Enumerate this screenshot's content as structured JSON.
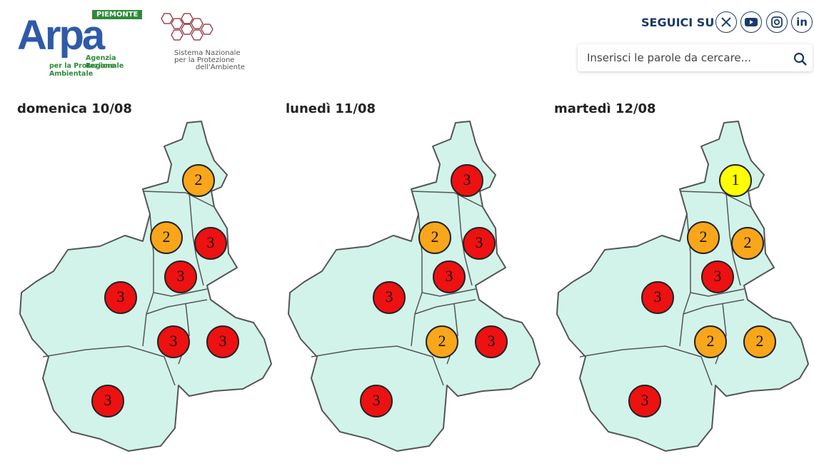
{
  "header": {
    "logo": {
      "badge": "PIEMONTE",
      "name": "Arpa",
      "line1": "Agenzia Regionale",
      "line2": "per la Protezione Ambientale"
    },
    "snpa": {
      "line1": "Sistema Nazionale",
      "line2": "per la Protezione",
      "line3": "dell'Ambiente"
    },
    "follow": "SEGUICI SU",
    "linkedin": "in",
    "search_placeholder": "Inserisci le parole da cercare..."
  },
  "level_colors": [
    "#ffff00",
    "#f9a61a",
    "#ee1111"
  ],
  "forecasts": [
    {
      "date": "domenica 10/08",
      "levels": [
        2,
        2,
        3,
        3,
        3,
        3,
        3,
        3
      ]
    },
    {
      "date": "lunedì 11/08",
      "levels": [
        3,
        2,
        3,
        3,
        3,
        2,
        3,
        3
      ]
    },
    {
      "date": "martedì 12/08",
      "levels": [
        1,
        2,
        2,
        3,
        3,
        2,
        2,
        3
      ]
    }
  ]
}
